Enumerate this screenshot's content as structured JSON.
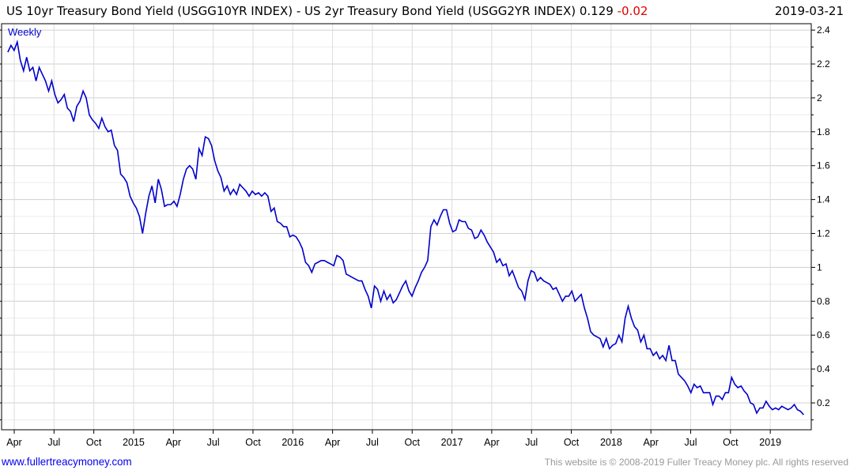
{
  "header": {
    "title": "US 10yr Treasury Bond Yield (USGG10YR INDEX) - US 2yr Treasury Bond Yield (USGG2YR INDEX)",
    "last": "0.129",
    "change": "-0.02",
    "date": "2019-03-21"
  },
  "footer": {
    "link": "www.fullertreacymoney.com",
    "copyright": "This website is © 2008-2019 Fuller Treacy Money plc. All rights reserved"
  },
  "chart_data": {
    "type": "line",
    "frequency_label": "Weekly",
    "line_color": "#0000cc",
    "ylim": [
      0.1,
      2.45
    ],
    "yticks": [
      "0.2",
      "0.4",
      "0.6",
      "0.8",
      "1",
      "1.2",
      "1.4",
      "1.6",
      "1.8",
      "2",
      "2.2",
      "2.4"
    ],
    "xticks": [
      {
        "label": "Apr",
        "t": 2014.25
      },
      {
        "label": "Jul",
        "t": 2014.5
      },
      {
        "label": "Oct",
        "t": 2014.75
      },
      {
        "label": "2015",
        "t": 2015
      },
      {
        "label": "Apr",
        "t": 2015.25
      },
      {
        "label": "Jul",
        "t": 2015.5
      },
      {
        "label": "Oct",
        "t": 2015.75
      },
      {
        "label": "2016",
        "t": 2016
      },
      {
        "label": "Apr",
        "t": 2016.25
      },
      {
        "label": "Jul",
        "t": 2016.5
      },
      {
        "label": "Oct",
        "t": 2016.75
      },
      {
        "label": "2017",
        "t": 2017
      },
      {
        "label": "Apr",
        "t": 2017.25
      },
      {
        "label": "Jul",
        "t": 2017.5
      },
      {
        "label": "Oct",
        "t": 2017.75
      },
      {
        "label": "2018",
        "t": 2018
      },
      {
        "label": "Apr",
        "t": 2018.25
      },
      {
        "label": "Jul",
        "t": 2018.5
      },
      {
        "label": "Oct",
        "t": 2018.75
      },
      {
        "label": "2019",
        "t": 2019
      }
    ],
    "xrange": [
      2014.21,
      2019.21
    ],
    "values": [
      2.27,
      2.31,
      2.28,
      2.33,
      2.22,
      2.16,
      2.24,
      2.16,
      2.18,
      2.1,
      2.18,
      2.14,
      2.1,
      2.04,
      2.1,
      2.02,
      1.97,
      1.99,
      2.02,
      1.94,
      1.92,
      1.86,
      1.95,
      1.98,
      2.04,
      2.0,
      1.9,
      1.87,
      1.85,
      1.82,
      1.88,
      1.83,
      1.8,
      1.81,
      1.72,
      1.69,
      1.55,
      1.53,
      1.5,
      1.42,
      1.38,
      1.35,
      1.3,
      1.2,
      1.32,
      1.42,
      1.48,
      1.38,
      1.52,
      1.46,
      1.36,
      1.37,
      1.37,
      1.39,
      1.36,
      1.43,
      1.52,
      1.58,
      1.6,
      1.58,
      1.52,
      1.7,
      1.66,
      1.77,
      1.76,
      1.72,
      1.63,
      1.57,
      1.53,
      1.45,
      1.48,
      1.43,
      1.46,
      1.43,
      1.49,
      1.47,
      1.45,
      1.42,
      1.45,
      1.43,
      1.44,
      1.42,
      1.44,
      1.42,
      1.33,
      1.35,
      1.27,
      1.26,
      1.24,
      1.24,
      1.18,
      1.19,
      1.18,
      1.15,
      1.11,
      1.03,
      1.01,
      0.97,
      1.02,
      1.03,
      1.04,
      1.04,
      1.03,
      1.02,
      1.01,
      1.07,
      1.06,
      1.04,
      0.96,
      0.95,
      0.94,
      0.93,
      0.92,
      0.92,
      0.87,
      0.83,
      0.76,
      0.89,
      0.87,
      0.8,
      0.86,
      0.81,
      0.84,
      0.79,
      0.81,
      0.85,
      0.89,
      0.92,
      0.86,
      0.83,
      0.88,
      0.92,
      0.97,
      1.0,
      1.04,
      1.24,
      1.28,
      1.25,
      1.3,
      1.34,
      1.34,
      1.26,
      1.21,
      1.22,
      1.28,
      1.27,
      1.27,
      1.23,
      1.22,
      1.17,
      1.18,
      1.22,
      1.19,
      1.15,
      1.12,
      1.09,
      1.03,
      1.05,
      1.01,
      1.02,
      0.95,
      0.98,
      0.93,
      0.88,
      0.86,
      0.81,
      0.92,
      0.98,
      0.97,
      0.92,
      0.94,
      0.92,
      0.91,
      0.9,
      0.87,
      0.88,
      0.84,
      0.8,
      0.83,
      0.83,
      0.86,
      0.8,
      0.82,
      0.84,
      0.76,
      0.7,
      0.62,
      0.6,
      0.59,
      0.58,
      0.53,
      0.58,
      0.52,
      0.54,
      0.55,
      0.6,
      0.56,
      0.7,
      0.77,
      0.7,
      0.65,
      0.63,
      0.56,
      0.6,
      0.52,
      0.52,
      0.48,
      0.5,
      0.46,
      0.48,
      0.45,
      0.54,
      0.45,
      0.45,
      0.37,
      0.35,
      0.33,
      0.3,
      0.26,
      0.31,
      0.29,
      0.3,
      0.26,
      0.26,
      0.26,
      0.19,
      0.24,
      0.24,
      0.22,
      0.26,
      0.26,
      0.35,
      0.31,
      0.29,
      0.3,
      0.27,
      0.25,
      0.2,
      0.19,
      0.14,
      0.17,
      0.17,
      0.21,
      0.18,
      0.16,
      0.17,
      0.16,
      0.18,
      0.17,
      0.16,
      0.17,
      0.19,
      0.16,
      0.15,
      0.13
    ]
  }
}
